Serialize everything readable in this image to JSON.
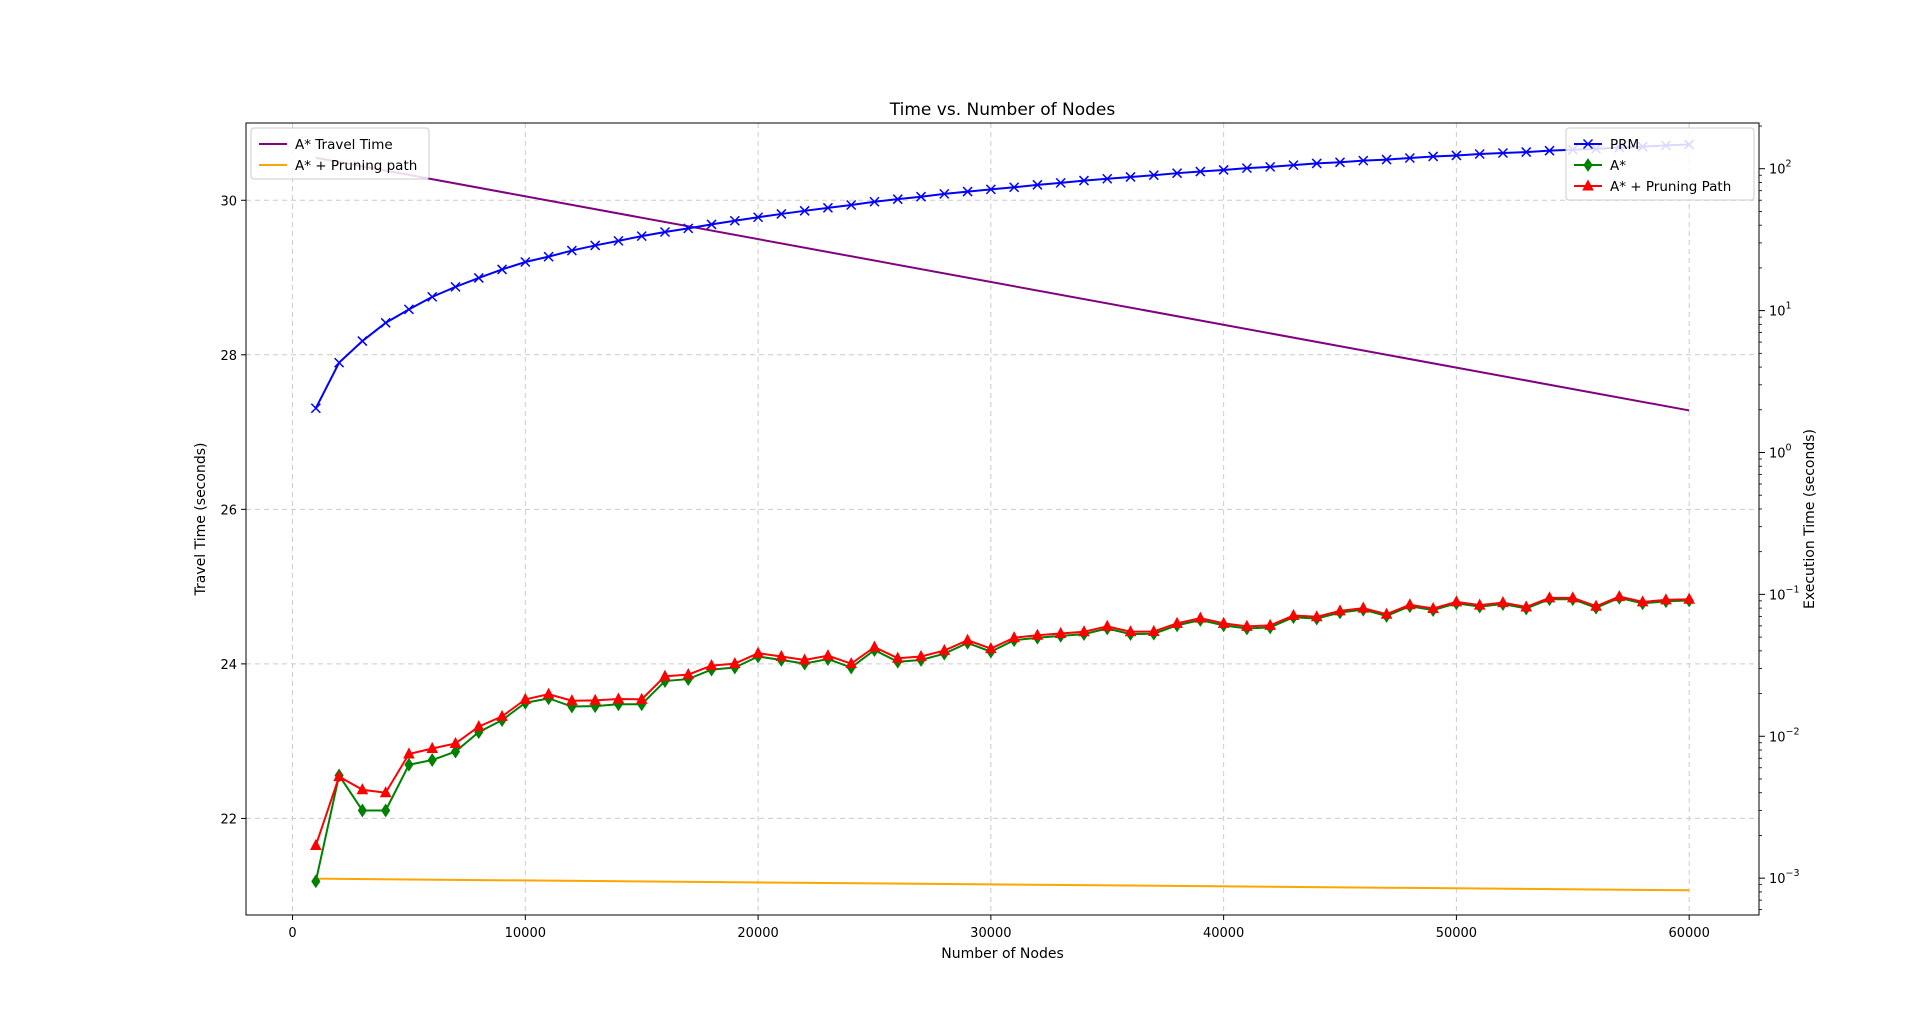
{
  "chart_data": {
    "type": "line",
    "title": "Time vs. Number of Nodes",
    "xlabel": "Number of Nodes",
    "ylabel_left": "Travel Time (seconds)",
    "ylabel_right": "Execution Time (seconds)",
    "xlim": [
      -2000,
      63000
    ],
    "ylim_left": [
      20.75,
      31.0
    ],
    "ylim_right_log": [
      0.00055,
      210
    ],
    "right_axis_scale": "log",
    "grid": true,
    "x_ticks": [
      0,
      10000,
      20000,
      30000,
      40000,
      50000,
      60000
    ],
    "y_left_ticks": [
      22,
      24,
      26,
      28,
      30
    ],
    "y_right_ticks": [
      {
        "value": 0.001,
        "base": "10",
        "exp": "−3"
      },
      {
        "value": 0.01,
        "base": "10",
        "exp": "−2"
      },
      {
        "value": 0.1,
        "base": "10",
        "exp": "−1"
      },
      {
        "value": 1,
        "base": "10",
        "exp": "0"
      },
      {
        "value": 10,
        "base": "10",
        "exp": "1"
      },
      {
        "value": 100,
        "base": "10",
        "exp": "2"
      }
    ],
    "legend_left_placement": "top-left",
    "legend_right_placement": "top-right",
    "left_series": [
      {
        "name": "A* Travel Time",
        "color": "#800080",
        "x": [
          1000,
          60000
        ],
        "values": [
          30.55,
          27.28
        ]
      },
      {
        "name": "A* + Pruning path",
        "color": "#FFA500",
        "x": [
          1000,
          60000
        ],
        "values": [
          21.22,
          21.07
        ]
      }
    ],
    "right_series": [
      {
        "name": "PRM",
        "color": "#0000FF",
        "marker": "x",
        "x": [
          1000,
          2000,
          3000,
          4000,
          5000,
          6000,
          7000,
          8000,
          9000,
          10000,
          11000,
          12000,
          13000,
          14000,
          15000,
          16000,
          17000,
          18000,
          19000,
          20000,
          21000,
          22000,
          23000,
          24000,
          25000,
          26000,
          27000,
          28000,
          29000,
          30000,
          31000,
          32000,
          33000,
          34000,
          35000,
          36000,
          37000,
          38000,
          39000,
          40000,
          41000,
          42000,
          43000,
          44000,
          45000,
          46000,
          47000,
          48000,
          49000,
          50000,
          51000,
          52000,
          53000,
          54000,
          55000,
          56000,
          57000,
          58000,
          59000,
          60000
        ],
        "values": [
          2.05,
          4.3,
          6.1,
          8.2,
          10.2,
          12.5,
          14.7,
          17.0,
          19.5,
          22.0,
          24.0,
          26.5,
          28.8,
          31.0,
          33.5,
          35.8,
          38.0,
          40.5,
          43.0,
          45.5,
          48.0,
          50.5,
          53.0,
          55.5,
          58.5,
          61.0,
          63.5,
          66.5,
          69.0,
          71.5,
          74.0,
          77.0,
          79.5,
          82.5,
          85.0,
          87.5,
          90.0,
          93.0,
          95.5,
          98.0,
          101,
          103,
          106,
          109,
          111,
          114,
          116,
          119,
          122,
          124,
          127,
          129,
          131,
          134,
          136,
          138,
          141,
          143,
          146,
          148
        ]
      },
      {
        "name": "A*",
        "color": "#008000",
        "marker": "diamond",
        "x": [
          1000,
          2000,
          3000,
          4000,
          5000,
          6000,
          7000,
          8000,
          9000,
          10000,
          11000,
          12000,
          13000,
          14000,
          15000,
          16000,
          17000,
          18000,
          19000,
          20000,
          21000,
          22000,
          23000,
          24000,
          25000,
          26000,
          27000,
          28000,
          29000,
          30000,
          31000,
          32000,
          33000,
          34000,
          35000,
          36000,
          37000,
          38000,
          39000,
          40000,
          41000,
          42000,
          43000,
          44000,
          45000,
          46000,
          47000,
          48000,
          49000,
          50000,
          51000,
          52000,
          53000,
          54000,
          55000,
          56000,
          57000,
          58000,
          59000,
          60000
        ],
        "values": [
          0.00095,
          0.0053,
          0.003,
          0.003,
          0.0063,
          0.0068,
          0.0078,
          0.0107,
          0.013,
          0.0172,
          0.0185,
          0.0162,
          0.0163,
          0.0168,
          0.0168,
          0.0245,
          0.0253,
          0.0295,
          0.0305,
          0.0365,
          0.0345,
          0.0325,
          0.035,
          0.0305,
          0.0405,
          0.0335,
          0.0345,
          0.0382,
          0.0455,
          0.0395,
          0.0475,
          0.0495,
          0.051,
          0.0525,
          0.0575,
          0.0525,
          0.0528,
          0.0605,
          0.066,
          0.0605,
          0.0575,
          0.0585,
          0.069,
          0.0675,
          0.0745,
          0.078,
          0.0705,
          0.0825,
          0.0775,
          0.0865,
          0.082,
          0.0855,
          0.0795,
          0.0925,
          0.0925,
          0.0805,
          0.0945,
          0.0865,
          0.0895,
          0.0905
        ]
      },
      {
        "name": "A* + Pruning Path",
        "color": "#FF0000",
        "marker": "triangle",
        "x": [
          1000,
          2000,
          3000,
          4000,
          5000,
          6000,
          7000,
          8000,
          9000,
          10000,
          11000,
          12000,
          13000,
          14000,
          15000,
          16000,
          17000,
          18000,
          19000,
          20000,
          21000,
          22000,
          23000,
          24000,
          25000,
          26000,
          27000,
          28000,
          29000,
          30000,
          31000,
          32000,
          33000,
          34000,
          35000,
          36000,
          37000,
          38000,
          39000,
          40000,
          41000,
          42000,
          43000,
          44000,
          45000,
          46000,
          47000,
          48000,
          49000,
          50000,
          51000,
          52000,
          53000,
          54000,
          55000,
          56000,
          57000,
          58000,
          59000,
          60000
        ],
        "values": [
          0.0017,
          0.0052,
          0.0042,
          0.004,
          0.0075,
          0.0082,
          0.0089,
          0.0117,
          0.0138,
          0.0182,
          0.0198,
          0.0178,
          0.0179,
          0.0183,
          0.0182,
          0.0265,
          0.0272,
          0.0315,
          0.0325,
          0.0385,
          0.0365,
          0.0345,
          0.037,
          0.0325,
          0.0425,
          0.0355,
          0.0365,
          0.0402,
          0.0475,
          0.0415,
          0.0495,
          0.0515,
          0.053,
          0.0545,
          0.0595,
          0.0545,
          0.0548,
          0.0625,
          0.068,
          0.0625,
          0.0595,
          0.0605,
          0.071,
          0.0695,
          0.0765,
          0.08,
          0.0725,
          0.0845,
          0.0795,
          0.0885,
          0.084,
          0.0875,
          0.0815,
          0.0945,
          0.0945,
          0.0825,
          0.0965,
          0.0885,
          0.0915,
          0.0925
        ]
      }
    ]
  }
}
